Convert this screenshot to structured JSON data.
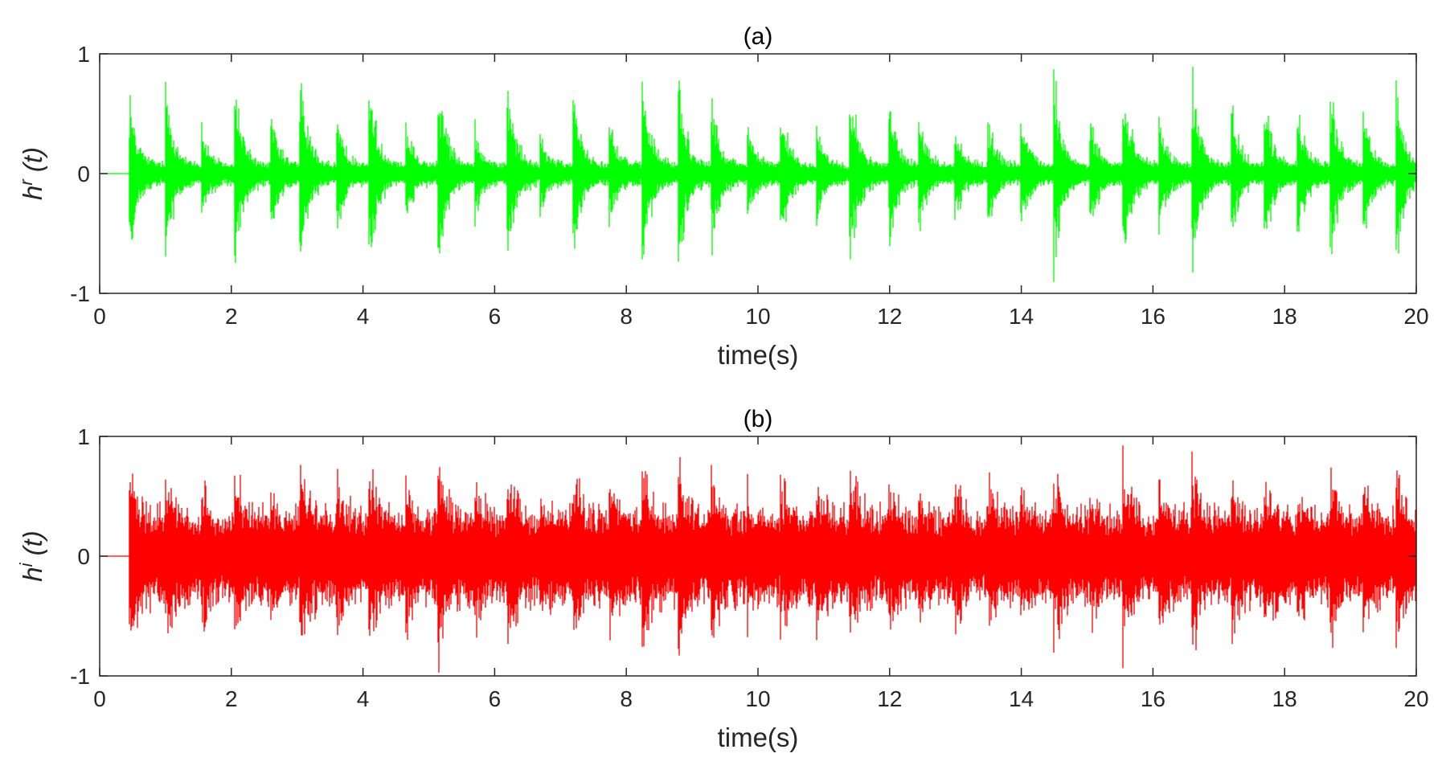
{
  "chart_data": [
    {
      "type": "line",
      "title": "(a)",
      "xlabel": "time(s)",
      "ylabel": {
        "base": "h",
        "sup": "r",
        "rest": " (t)"
      },
      "xlim": [
        0,
        20
      ],
      "ylim": [
        -1,
        1
      ],
      "xticks": [
        "0",
        "2",
        "4",
        "6",
        "8",
        "10",
        "12",
        "14",
        "16",
        "18",
        "20"
      ],
      "yticks": [
        "-1",
        "0",
        "1"
      ],
      "grid": false,
      "color": "#00ff00",
      "signal": {
        "description_values": {
          "onset_time": 0.45,
          "baseline_amplitude": 0.1,
          "burst_times": [
            0.45,
            1.0,
            1.55,
            2.05,
            2.6,
            3.05,
            3.6,
            4.1,
            4.65,
            5.15,
            5.7,
            6.2,
            6.7,
            7.2,
            7.75,
            8.25,
            8.8,
            9.3,
            9.85,
            10.35,
            10.9,
            11.4,
            12.0,
            12.45,
            13.0,
            13.5,
            14.0,
            14.5,
            15.05,
            15.55,
            16.1,
            16.6,
            17.2,
            17.7,
            18.2,
            18.7,
            19.2,
            19.7
          ],
          "burst_peaks": [
            0.9,
            1.0,
            0.5,
            1.0,
            0.6,
            1.0,
            0.6,
            1.0,
            0.6,
            1.0,
            0.5,
            0.9,
            0.4,
            0.95,
            0.6,
            1.0,
            1.0,
            0.8,
            0.5,
            0.75,
            0.5,
            1.0,
            0.8,
            0.6,
            0.5,
            0.6,
            0.6,
            1.0,
            0.6,
            1.0,
            0.6,
            1.0,
            0.7,
            0.8,
            0.7,
            0.9,
            0.7,
            0.9
          ]
        }
      }
    },
    {
      "type": "line",
      "title": "(b)",
      "xlabel": "time(s)",
      "ylabel": {
        "base": "h",
        "sup": "i",
        "rest": " (t)"
      },
      "xlim": [
        0,
        20
      ],
      "ylim": [
        -1,
        1
      ],
      "xticks": [
        "0",
        "2",
        "4",
        "6",
        "8",
        "10",
        "12",
        "14",
        "16",
        "18",
        "20"
      ],
      "yticks": [
        "-1",
        "0",
        "1"
      ],
      "grid": false,
      "color": "#ff0000",
      "signal": {
        "description_values": {
          "onset_time": 0.45,
          "baseline_amplitude": 0.45,
          "burst_times": [
            0.45,
            1.0,
            1.55,
            2.05,
            2.6,
            3.05,
            3.6,
            4.1,
            4.65,
            5.15,
            5.7,
            6.2,
            6.7,
            7.2,
            7.75,
            8.25,
            8.8,
            9.3,
            9.85,
            10.35,
            10.9,
            11.4,
            12.0,
            12.45,
            13.0,
            13.5,
            14.0,
            14.5,
            15.05,
            15.55,
            16.1,
            16.6,
            17.2,
            17.7,
            18.2,
            18.7,
            19.2,
            19.7
          ],
          "burst_peaks": [
            1.0,
            1.0,
            0.8,
            1.0,
            0.8,
            1.0,
            0.8,
            1.0,
            0.8,
            1.0,
            0.8,
            0.9,
            0.7,
            0.95,
            0.8,
            1.0,
            1.0,
            0.9,
            0.7,
            0.85,
            0.75,
            1.0,
            0.8,
            0.7,
            0.75,
            0.8,
            0.8,
            1.0,
            0.75,
            1.0,
            0.8,
            1.0,
            0.8,
            0.9,
            0.8,
            0.9,
            0.8,
            0.95
          ]
        }
      }
    }
  ]
}
